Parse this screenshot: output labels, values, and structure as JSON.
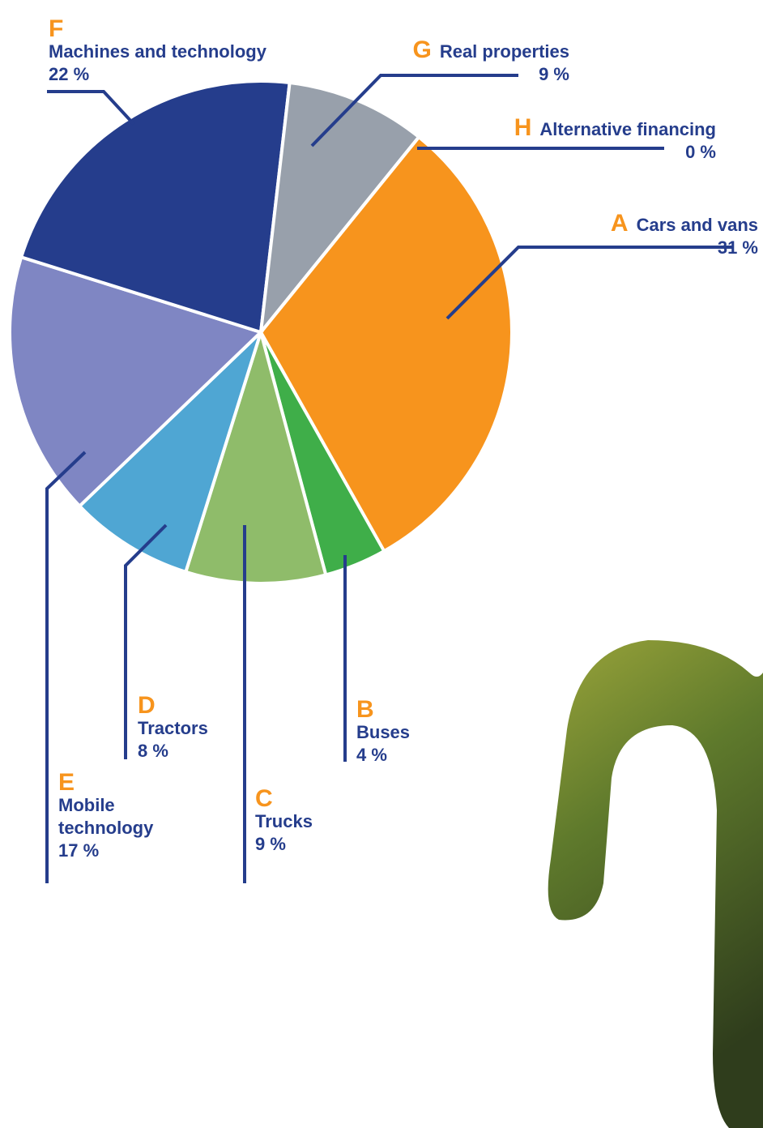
{
  "chart_data": {
    "type": "pie",
    "letters": [
      "A",
      "B",
      "C",
      "D",
      "E",
      "F",
      "G",
      "H"
    ],
    "categories": [
      "Cars and vans",
      "Buses",
      "Trucks",
      "Tractors",
      "Mobile technology",
      "Machines and technology",
      "Real properties",
      "Alternative financing"
    ],
    "values": [
      31,
      4,
      9,
      8,
      17,
      22,
      9,
      0
    ],
    "value_labels": [
      "31 %",
      "4 %",
      "9 %",
      "8 %",
      "17 %",
      "22 %",
      "9 %",
      "0 %"
    ],
    "colors": [
      "#f7941d",
      "#3fae49",
      "#8fbc6a",
      "#4fa6d3",
      "#7f86c3",
      "#253d8c",
      "#98a0ab",
      "#5a5a5a"
    ]
  }
}
